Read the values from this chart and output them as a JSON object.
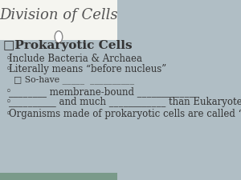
{
  "title": "Division of Cells",
  "title_fontsize": 13,
  "title_color": "#555555",
  "bg_color": "#b0bec5",
  "header_bg": "#f5f5f0",
  "bullet1": "□Prokaryotic Cells",
  "bullet1_fontsize": 11,
  "lines": [
    {
      "text": "Include Bacteria & Archaea",
      "level": 1
    },
    {
      "text": "Literally means “before nucleus”",
      "level": 1
    },
    {
      "text": "□ So-have _____  __________",
      "level": 2
    },
    {
      "text": "________ membrane-bound ____________",
      "level": 1
    },
    {
      "text": "__________ and much ____________ than Eukaryotes",
      "level": 1
    },
    {
      "text": "Organisms made of prokaryotic cells are called “prokaryotes”",
      "level": 1
    }
  ],
  "font_color": "#333333",
  "circle_color": "#ffffff",
  "circle_edge": "#888888",
  "body_fontsize": 8.5,
  "sub_fontsize": 7.8,
  "bottom_strip_color": "#7a9a8a"
}
